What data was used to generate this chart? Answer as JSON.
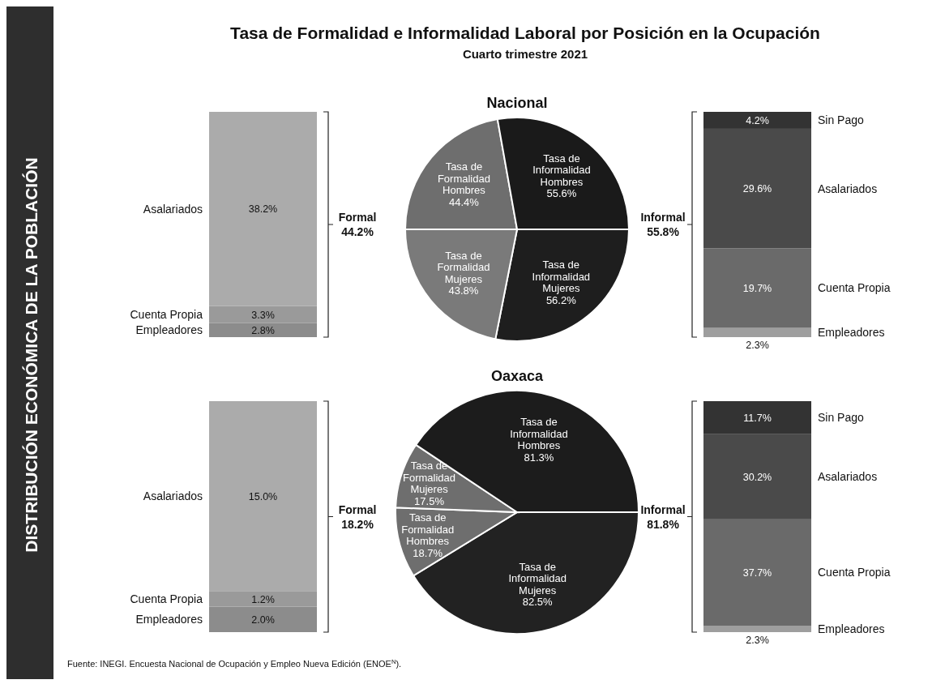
{
  "chart_data": [
    {
      "type": "other",
      "title": "Tasa de Formalidad e Informalidad Laboral por Posición en la Ocupación",
      "subtitle": "Cuarto trimestre 2021",
      "annotations": [
        "DISTRIBUCIÓN ECONÓMICA DE LA POBLACIÓN",
        "Fuente: INEGI. Encuesta Nacional de Ocupación y Empleo Nueva Edición (ENOE$^{N}$)."
      ]
    },
    {
      "type": "bar",
      "stacked": true,
      "categories": [
        null
      ],
      "annotations": [
        "Formal 44.2%"
      ],
      "series": [
        {
          "name": "Empleadores",
          "color": "#8c8c8c",
          "values": [
            2.8
          ],
          "value_labels": [
            "2.8%"
          ]
        },
        {
          "name": "Cuenta Propia",
          "color": "#9a9a9a",
          "values": [
            3.3
          ],
          "value_labels": [
            "3.3%"
          ]
        },
        {
          "name": "Asalariados",
          "color": "#ababab",
          "values": [
            38.2
          ],
          "value_labels": [
            "38.2%"
          ]
        }
      ]
    },
    {
      "type": "pie",
      "title": "Nacional",
      "categories": [
        "Tasa de Informalidad Mujeres",
        "Tasa de Formalidad Mujeres",
        "Tasa de Formalidad Hombres",
        "Tasa de Informalidad Hombres"
      ],
      "values": [
        56.2,
        43.8,
        44.4,
        55.6
      ],
      "colors": [
        "#1e1e1e",
        "#7a7a7a",
        "#6e6e6e",
        "#1a1a1a"
      ],
      "value_labels": [
        "56.2%",
        "43.8%",
        "44.4%",
        "55.6%"
      ]
    },
    {
      "type": "bar",
      "stacked": true,
      "categories": [
        null
      ],
      "annotations": [
        "Informal 55.8%"
      ],
      "series": [
        {
          "name": "Empleadores",
          "color": "#9e9e9e",
          "values": [
            2.3
          ],
          "value_labels": [
            "2.3%"
          ]
        },
        {
          "name": "Cuenta Propia",
          "color": "#6a6a6a",
          "values": [
            19.7
          ],
          "value_labels": [
            "19.7%"
          ]
        },
        {
          "name": "Asalariados",
          "color": "#4a4a4a",
          "values": [
            29.6
          ],
          "value_labels": [
            "29.6%"
          ]
        },
        {
          "name": "Sin Pago",
          "color": "#333333",
          "values": [
            4.2
          ],
          "value_labels": [
            "4.2%"
          ]
        }
      ]
    },
    {
      "type": "bar",
      "stacked": true,
      "categories": [
        null
      ],
      "annotations": [
        "Formal 18.2%"
      ],
      "series": [
        {
          "name": "Empleadores",
          "color": "#8c8c8c",
          "values": [
            2.0
          ],
          "value_labels": [
            "2.0%"
          ]
        },
        {
          "name": "Cuenta Propia",
          "color": "#9a9a9a",
          "values": [
            1.2
          ],
          "value_labels": [
            "1.2%"
          ]
        },
        {
          "name": "Asalariados",
          "color": "#ababab",
          "values": [
            15.0
          ],
          "value_labels": [
            "15.0%"
          ]
        }
      ]
    },
    {
      "type": "pie",
      "title": "Oaxaca",
      "categories": [
        "Tasa de Informalidad Mujeres",
        "Tasa de Formalidad Hombres",
        "Tasa de Formalidad Mujeres",
        "Tasa de Informalidad Hombres"
      ],
      "values": [
        82.5,
        18.7,
        17.5,
        81.3
      ],
      "colors": [
        "#222222",
        "#6e6e6e",
        "#6e6e6e",
        "#1c1c1c"
      ],
      "value_labels": [
        "82.5%",
        "18.7%",
        "17.5%",
        "81.3%"
      ]
    },
    {
      "type": "bar",
      "stacked": true,
      "categories": [
        null
      ],
      "annotations": [
        "Informal 81.8%"
      ],
      "series": [
        {
          "name": "Empleadores",
          "color": "#9e9e9e",
          "values": [
            2.3
          ],
          "value_labels": [
            "2.3%"
          ]
        },
        {
          "name": "Cuenta Propia",
          "color": "#6a6a6a",
          "values": [
            37.7
          ],
          "value_labels": [
            "37.7%"
          ]
        },
        {
          "name": "Asalariados",
          "color": "#4a4a4a",
          "values": [
            30.2
          ],
          "value_labels": [
            "30.2%"
          ]
        },
        {
          "name": "Sin Pago",
          "color": "#333333",
          "values": [
            11.7
          ],
          "value_labels": [
            "11.7%"
          ]
        }
      ]
    }
  ]
}
